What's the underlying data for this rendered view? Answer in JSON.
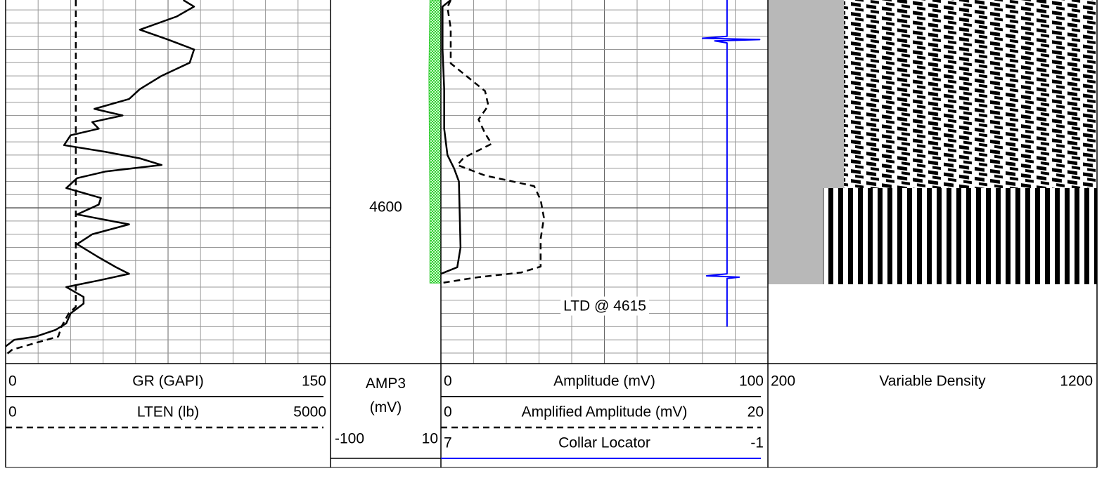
{
  "chart_data": {
    "type": "log",
    "ylim": [
      4568.5,
      4623.6
    ],
    "yticks": [
      4600
    ],
    "grid": true,
    "annotation": "LTD @ 4615",
    "tracks": [
      {
        "series": [
          {
            "name": "GR (GAPI)",
            "xlim": [
              0,
              150
            ],
            "color": "#000000",
            "line_style": "solid",
            "depth": [
              4568.5,
              4569.5,
              4571,
              4573,
              4574.5,
              4576,
              4578,
              4580,
              4582,
              4583.5,
              4585,
              4586,
              4587,
              4588,
              4589,
              4590.5,
              4591.5,
              4592.5,
              4593.5,
              4594.5,
              4595.5,
              4597,
              4598.5,
              4599.5,
              4601,
              4602.5,
              4604,
              4605.5,
              4607.5,
              4609,
              4610,
              4611,
              4612,
              4613.5,
              4614.5,
              4616,
              4617.5,
              4618.5,
              4619.5,
              4620,
              4621
            ],
            "values": [
              82,
              87,
              79,
              62,
              75,
              87,
              85,
              72,
              62,
              57,
              41,
              54,
              40,
              43,
              30,
              27,
              46,
              62,
              72,
              46,
              33,
              28,
              44,
              43,
              33,
              57,
              40,
              33,
              43,
              51,
              57,
              43,
              28,
              36,
              36,
              30,
              28,
              23,
              14,
              4,
              0
            ]
          },
          {
            "name": "LTEN (lb)",
            "xlim": [
              0,
              5000
            ],
            "color": "#000000",
            "line_style": "dashed",
            "depth": [
              4568.5,
              4615,
              4616,
              4618,
              4619.5,
              4620.5,
              4621.5,
              4622.3
            ],
            "values": [
              1080,
              1080,
              970,
              860,
              810,
              450,
              100,
              0
            ]
          }
        ]
      },
      {
        "series": [
          {
            "name": "AMP3 (mV)",
            "xlim": [
              -100,
              10
            ],
            "color": "#33cc33",
            "line_style": "fill",
            "depth": [
              4568.5,
              4580,
              4600,
              4611.4
            ],
            "values": [
              -1,
              -2,
              -1,
              -1
            ]
          }
        ]
      },
      {
        "series": [
          {
            "name": "Amplitude (mV)",
            "xlim": [
              0,
              100
            ],
            "color": "#000000",
            "line_style": "solid",
            "depth": [
              4568.5,
              4569.5,
              4576,
              4582,
              4588,
              4592,
              4594,
              4596,
              4606,
              4609,
              4610
            ],
            "values": [
              3,
              0.5,
              0.5,
              1,
              1,
              2,
              4,
              5.5,
              6,
              5,
              0
            ]
          },
          {
            "name": "Amplified Amplitude (mV)",
            "xlim": [
              0,
              20
            ],
            "color": "#000000",
            "line_style": "dashed",
            "depth": [
              4568.5,
              4569.6,
              4572.8,
              4578.1,
              4582.3,
              4584.5,
              4586.6,
              4588.7,
              4590.3,
              4592.4,
              4593.5,
              4595.1,
              4596.7,
              4598.8,
              4601.5,
              4604.7,
              4608.9,
              4609.8,
              4610.5,
              4611.4
            ],
            "values": [
              0.6,
              0.4,
              0.6,
              0.6,
              2.7,
              2.9,
              2.3,
              2.7,
              3.1,
              1.4,
              1,
              2.7,
              5.7,
              6.1,
              6.3,
              6.1,
              6.1,
              4.9,
              2.3,
              0
            ]
          },
          {
            "name": "Collar Locator",
            "xlim": [
              7,
              -1
            ],
            "color": "#0000ff",
            "line_style": "solid",
            "depth": [
              4568.5,
              4574,
              4574.3,
              4574.5,
              4574.7,
              4575,
              4610,
              4610.3,
              4610.5,
              4610.7,
              4618
            ],
            "values": [
              0,
              0,
              0.6,
              -0.8,
              0.3,
              0,
              0,
              0.5,
              -0.3,
              0,
              0
            ]
          }
        ]
      },
      {
        "series": [
          {
            "name": "Variable Density",
            "xlim": [
              200,
              1200
            ],
            "color": "#000000",
            "line_style": "image"
          }
        ]
      }
    ]
  }
}
